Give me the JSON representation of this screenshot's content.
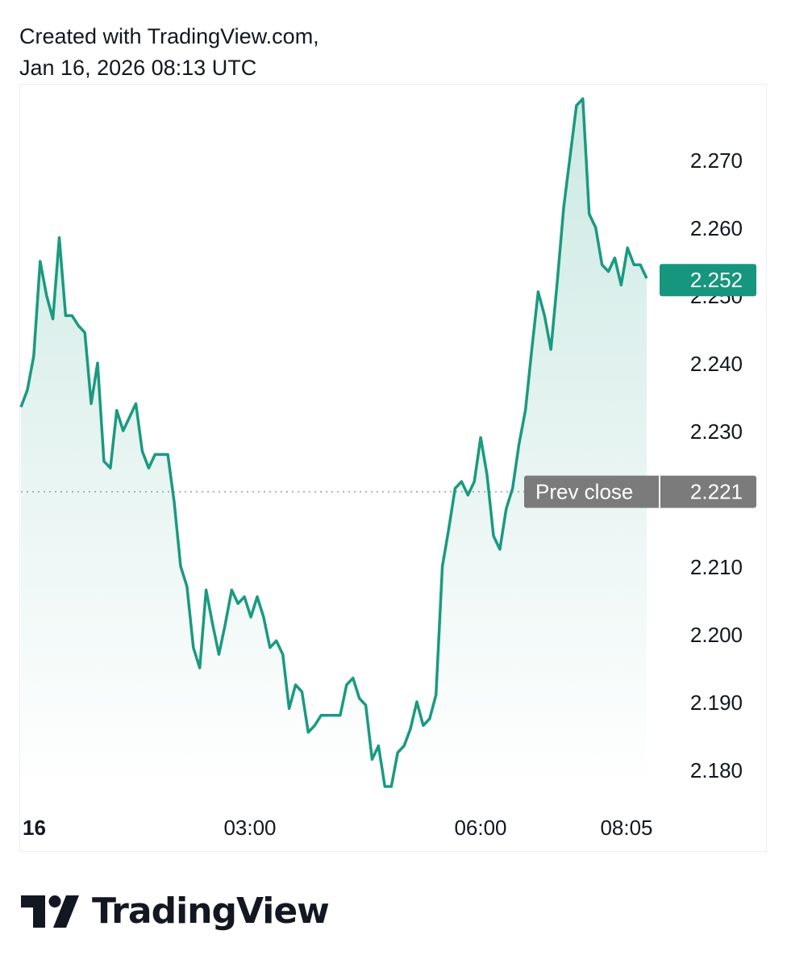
{
  "header": {
    "line1": "Created with TradingView.com,",
    "line2": "Jan 16, 2026 08:13 UTC"
  },
  "brand": {
    "name": "TradingView",
    "logo_icon": "tradingview-logo-icon"
  },
  "colors": {
    "line": "#1a9a80",
    "fill_top": "#1a9a80",
    "price_badge": "#16967e",
    "prev_close_badge": "#7b7b7b",
    "text": "#131722"
  },
  "chart_data": {
    "type": "area",
    "ylim": [
      2.175,
      2.28
    ],
    "yticks": [
      "2.270",
      "2.260",
      "2.250",
      "2.240",
      "2.230",
      "2.210",
      "2.200",
      "2.190",
      "2.180"
    ],
    "xticks": [
      "16",
      "03:00",
      "06:00",
      "08:05"
    ],
    "current_price": {
      "label": "2.252",
      "value": 2.252
    },
    "prev_close": {
      "label": "Prev close",
      "value_label": "2.221",
      "value": 2.221
    },
    "series": [
      {
        "values": [
          2.2335,
          2.236,
          2.241,
          2.255,
          2.25,
          2.2465,
          2.2585,
          2.247,
          2.247,
          2.2455,
          2.2445,
          2.234,
          2.24,
          2.2255,
          2.2245,
          2.233,
          2.23,
          2.232,
          2.234,
          2.227,
          2.2245,
          2.2265,
          2.2265,
          2.2265,
          2.2195,
          2.21,
          2.207,
          2.198,
          2.195,
          2.2065,
          2.2015,
          2.197,
          2.2015,
          2.2065,
          2.2045,
          2.2055,
          2.2025,
          2.2055,
          2.2025,
          2.198,
          2.199,
          2.197,
          2.189,
          2.1925,
          2.1915,
          2.1855,
          2.1865,
          2.188,
          2.188,
          2.188,
          2.188,
          2.1925,
          2.1935,
          2.1905,
          2.1895,
          2.1815,
          2.1835,
          2.1775,
          2.1775,
          2.1825,
          2.1835,
          2.186,
          2.19,
          2.1865,
          2.1875,
          2.191,
          2.21,
          2.2155,
          2.2215,
          2.2225,
          2.2205,
          2.2225,
          2.229,
          2.2235,
          2.2145,
          2.2125,
          2.2185,
          2.2215,
          2.228,
          2.233,
          2.242,
          2.2505,
          2.247,
          2.242,
          2.252,
          2.263,
          2.2705,
          2.278,
          2.279,
          2.262,
          2.26,
          2.2545,
          2.2535,
          2.2555,
          2.2515,
          2.257,
          2.2545,
          2.2545,
          2.2525
        ]
      }
    ]
  }
}
